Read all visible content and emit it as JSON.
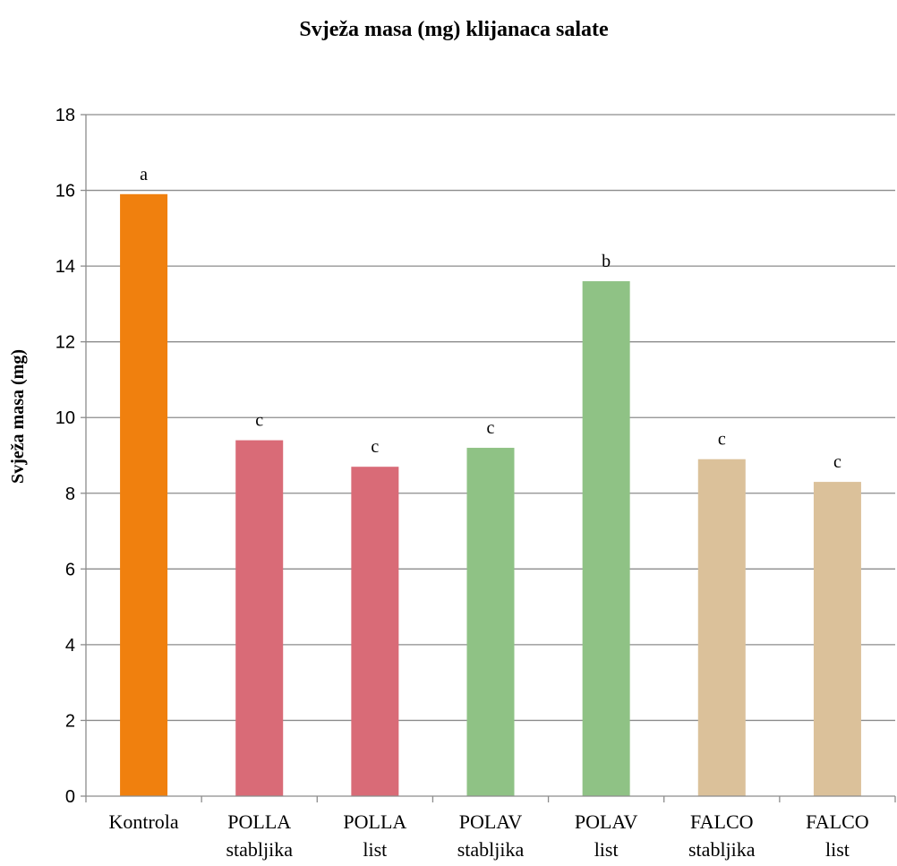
{
  "chart_data": {
    "type": "bar",
    "title": "Svježa masa (mg) klijanaca salate",
    "ylabel": "Svježa masa (mg)",
    "xlabel": "",
    "ylim": [
      0,
      18
    ],
    "yticks": [
      0,
      2,
      4,
      6,
      8,
      10,
      12,
      14,
      16,
      18
    ],
    "grid": true,
    "legend": "none",
    "categories": [
      [
        "Kontrola"
      ],
      [
        "POLLA",
        "stabljika"
      ],
      [
        "POLLA",
        "list"
      ],
      [
        "POLAV",
        "stabljika"
      ],
      [
        "POLAV",
        "list"
      ],
      [
        "FALCO",
        "stabljika"
      ],
      [
        "FALCO",
        "list"
      ]
    ],
    "values": [
      15.9,
      9.4,
      8.7,
      9.2,
      13.6,
      8.9,
      8.3
    ],
    "labels": [
      "a",
      "c",
      "c",
      "c",
      "b",
      "c",
      "c"
    ],
    "colors": [
      "#F0800E",
      "#D96B77",
      "#D96B77",
      "#8FC285",
      "#8FC285",
      "#DBC19A",
      "#DBC19A"
    ]
  }
}
